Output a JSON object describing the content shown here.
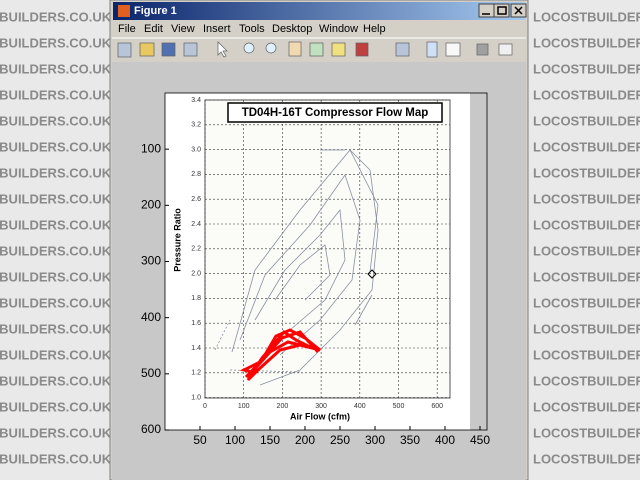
{
  "watermark": "LOCOSTBUILDERS.CO.UK",
  "window": {
    "title": "Figure 1",
    "menu": [
      "File",
      "Edit",
      "View",
      "Insert",
      "Tools",
      "Desktop",
      "Window",
      "Help"
    ]
  },
  "axes": {
    "xlim": [
      0,
      460
    ],
    "xticks": [
      50,
      100,
      150,
      200,
      250,
      300,
      350,
      400,
      450
    ],
    "ylim": [
      0,
      600
    ],
    "yticks": [
      100,
      200,
      300,
      400,
      500,
      600
    ],
    "y_reversed": true
  },
  "image": {
    "title": "TD04H-16T Compressor Flow Map",
    "ylabel": "Pressure Ratio",
    "xlabel": "Air Flow (cfm)",
    "yticks": [
      "3.4",
      "3.2",
      "3.0",
      "2.8",
      "2.6",
      "2.4",
      "2.2",
      "2.0",
      "1.8",
      "1.6",
      "1.4",
      "1.2",
      "1.0"
    ],
    "xticks": [
      "0",
      "100",
      "200",
      "300",
      "400",
      "500",
      "600"
    ]
  }
}
